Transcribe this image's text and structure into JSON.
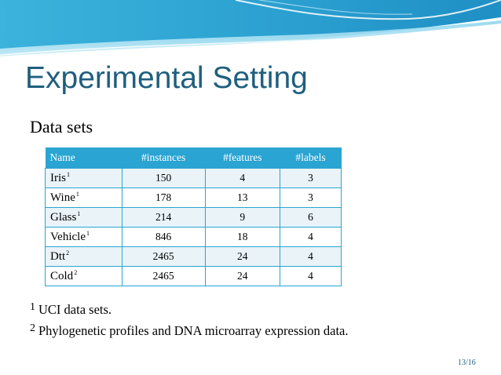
{
  "slide": {
    "title": "Experimental Setting",
    "subtitle": "Data sets",
    "page_number": "13/16"
  },
  "table": {
    "headers": [
      "Name",
      "#instances",
      "#features",
      "#labels"
    ],
    "rows": [
      {
        "name": "Iris",
        "footnote": "1",
        "instances": "150",
        "features": "4",
        "labels": "3"
      },
      {
        "name": "Wine",
        "footnote": "1",
        "instances": "178",
        "features": "13",
        "labels": "3"
      },
      {
        "name": "Glass",
        "footnote": "1",
        "instances": "214",
        "features": "9",
        "labels": "6"
      },
      {
        "name": "Vehicle",
        "footnote": "1",
        "instances": "846",
        "features": "18",
        "labels": "4"
      },
      {
        "name": "Dtt",
        "footnote": "2",
        "instances": "2465",
        "features": "24",
        "labels": "4"
      },
      {
        "name": "Cold",
        "footnote": "2",
        "instances": "2465",
        "features": "24",
        "labels": "4"
      }
    ]
  },
  "footnotes": [
    {
      "mark": "1",
      "text": "UCI data sets."
    },
    {
      "mark": "2",
      "text": "Phylogenetic profiles and DNA microarray expression data."
    }
  ],
  "colors": {
    "title": "#1f5f7e",
    "header_bg": "#2aa4d2",
    "band": "#e9f3f8"
  }
}
